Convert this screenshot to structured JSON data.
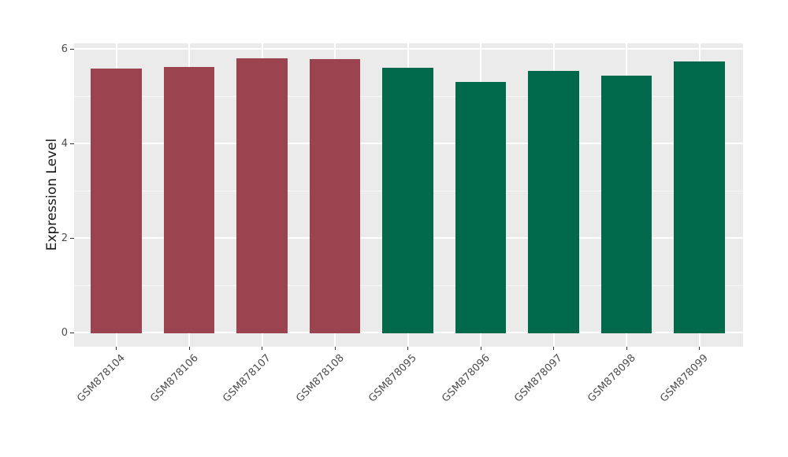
{
  "chart_data": {
    "type": "bar",
    "title": "",
    "xlabel": "",
    "ylabel": "Expression Level",
    "categories": [
      "GSM878104",
      "GSM878106",
      "GSM878107",
      "GSM878108",
      "GSM878095",
      "GSM878096",
      "GSM878097",
      "GSM878098",
      "GSM878099"
    ],
    "values": [
      5.58,
      5.62,
      5.8,
      5.78,
      5.6,
      5.3,
      5.54,
      5.43,
      5.73
    ],
    "groups": [
      "group1",
      "group1",
      "group1",
      "group1",
      "group2",
      "group2",
      "group2",
      "group2",
      "group2"
    ],
    "group_colors": {
      "group1": "#9B4450",
      "group2": "#00684B"
    },
    "y_ticks": [
      0,
      2,
      4,
      6
    ],
    "y_tick_labels": [
      "0",
      "2",
      "4",
      "6"
    ],
    "y_minor_ticks": [
      1,
      3,
      5
    ],
    "ylim": [
      0,
      6.09
    ],
    "x_label_rotation_deg": 45,
    "bar_relative_width": 0.7,
    "grid": "on",
    "legend": "none",
    "panel_background": "#EBEBEB",
    "gridline_major_color": "#FFFFFF",
    "gridline_minor_color": "rgba(255,255,255,0.6)",
    "tick_color": "#333333",
    "tick_label_color": "#4D4D4D",
    "axis_title_color": "#1A1A1A"
  }
}
